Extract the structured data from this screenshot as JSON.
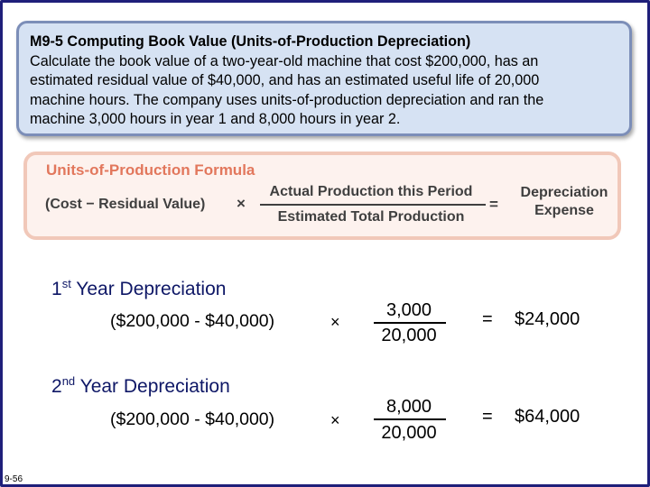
{
  "problem": {
    "title": "M9-5 Computing Book Value (Units-of-Production Depreciation)",
    "lines": [
      "Calculate the book value of a two-year-old machine that cost $200,000, has an",
      "estimated residual value of $40,000, and has an estimated useful life of 20,000",
      "machine hours. The company uses units-of-production depreciation and ran the",
      "machine 3,000 hours in year 1 and 8,000 hours in year 2."
    ]
  },
  "formula": {
    "title": "Units-of-Production Formula",
    "left": "(Cost − Residual Value)",
    "times": "×",
    "numerator": "Actual Production this Period",
    "denominator": "Estimated Total Production",
    "equals": "=",
    "result_line1": "Depreciation",
    "result_line2": "Expense",
    "title_color": "#e2775c"
  },
  "year1": {
    "title_prefix": "1",
    "title_sup": "st",
    "title_rest": " Year Depreciation",
    "expression": "($200,000 - $40,000)",
    "times": "×",
    "numerator": "3,000",
    "denominator": "20,000",
    "equals": "=",
    "result": "$24,000"
  },
  "year2": {
    "title_prefix": "2",
    "title_sup": "nd",
    "title_rest": " Year Depreciation",
    "expression": "($200,000 - $40,000)",
    "times": "×",
    "numerator": "8,000",
    "denominator": "20,000",
    "equals": "=",
    "result": "$64,000"
  },
  "page_number": "9-56"
}
